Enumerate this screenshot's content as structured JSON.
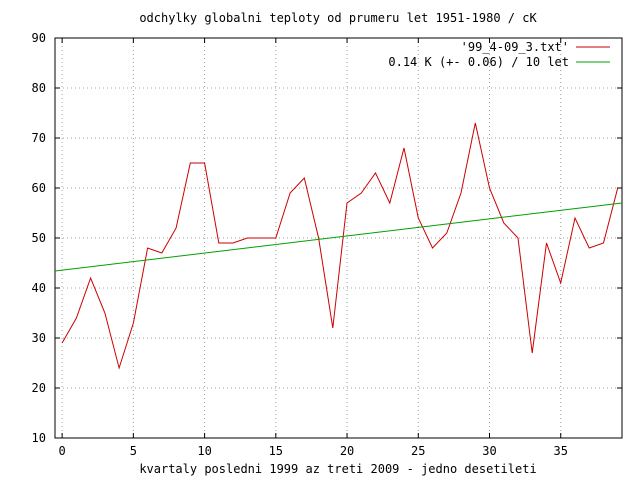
{
  "chart_data": {
    "type": "line",
    "title": "odchylky globalni teploty od prumeru let 1951-1980 / cK",
    "xlabel": "kvartaly posledni 1999 az treti 2009 - jedno desetileti",
    "ylabel": "",
    "xlim": [
      -0.5,
      39.3
    ],
    "ylim": [
      10,
      90
    ],
    "xticks": [
      0,
      5,
      10,
      15,
      20,
      25,
      30,
      35
    ],
    "xtick_labels": [
      "0",
      "5",
      "10",
      "15",
      "20",
      "25",
      "30",
      "35"
    ],
    "yticks": [
      10,
      20,
      30,
      40,
      50,
      60,
      70,
      80,
      90
    ],
    "ytick_labels": [
      "10",
      "20",
      "30",
      "40",
      "50",
      "60",
      "70",
      "80",
      "90"
    ],
    "grid": true,
    "legend_position": "top-right",
    "series": [
      {
        "name": "'99_4-09_3.txt'",
        "color": "#cc0000",
        "x": [
          0,
          1,
          2,
          3,
          4,
          5,
          6,
          7,
          8,
          9,
          10,
          11,
          12,
          13,
          14,
          15,
          16,
          17,
          18,
          19,
          20,
          21,
          22,
          23,
          24,
          25,
          26,
          27,
          28,
          29,
          30,
          31,
          32,
          33,
          34,
          35,
          36,
          37,
          38,
          39
        ],
        "values": [
          29,
          34,
          42,
          35,
          24,
          33,
          48,
          47,
          52,
          65,
          65,
          49,
          49,
          50,
          50,
          50,
          59,
          62,
          50,
          32,
          57,
          59,
          63,
          57,
          68,
          54,
          48,
          51,
          59,
          73,
          60,
          53,
          50,
          27,
          49,
          41,
          54,
          48,
          49,
          60
        ]
      },
      {
        "name": "0.14 K (+- 0.06) / 10 let",
        "color": "#00a000",
        "x": [
          -0.5,
          39.3
        ],
        "values": [
          43.4,
          57.0
        ]
      }
    ]
  }
}
